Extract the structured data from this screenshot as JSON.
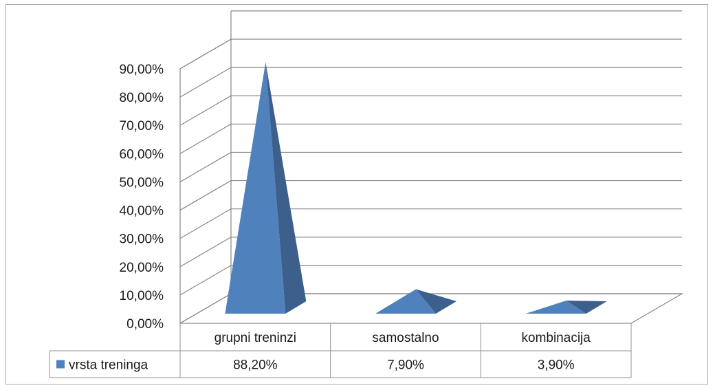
{
  "chart_data": {
    "type": "bar",
    "style": "3d-pyramid",
    "categories": [
      "grupni treninzi",
      "samostalno",
      "kombinacija"
    ],
    "series": [
      {
        "name": "vrsta treninga",
        "values": [
          88.2,
          7.9,
          3.9
        ],
        "labels": [
          "88,20%",
          "7,90%",
          "3,90%"
        ],
        "color": "#4f81bd"
      }
    ],
    "yticks": [
      "0,00%",
      "10,00%",
      "20,00%",
      "30,00%",
      "40,00%",
      "50,00%",
      "60,00%",
      "70,00%",
      "80,00%",
      "90,00%"
    ],
    "ylim": [
      0,
      90
    ],
    "grid": true,
    "legend": "data-table"
  }
}
